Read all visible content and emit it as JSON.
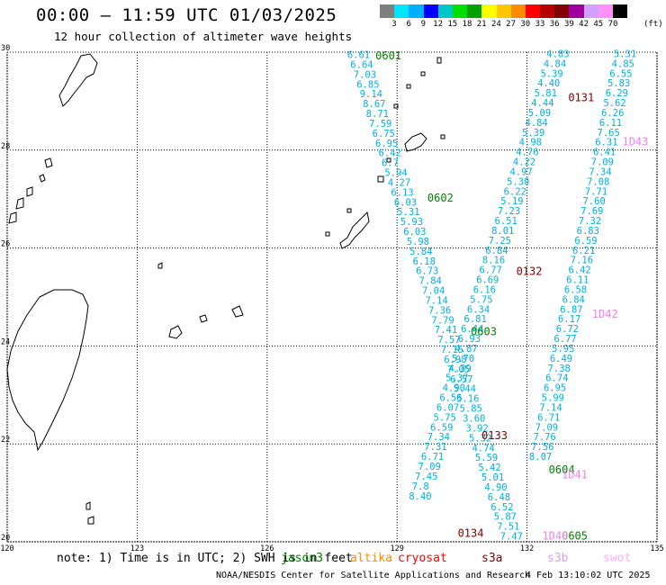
{
  "header": {
    "title": "00:00 – 11:59 UTC 01/03/2025",
    "subtitle": "12 hour collection of altimeter wave heights"
  },
  "colorbar": {
    "colors": [
      "#7f7f7f",
      "#00e5ff",
      "#00b0ff",
      "#0000ff",
      "#00c8c8",
      "#00e000",
      "#00a000",
      "#ffff00",
      "#ffc800",
      "#ff8c00",
      "#ff0000",
      "#b40000",
      "#800000",
      "#a000a0",
      "#d0a0ff",
      "#ff90ff",
      "#000000"
    ],
    "ticks": [
      "3",
      "6",
      "9",
      "12",
      "15",
      "18",
      "21",
      "24",
      "27",
      "30",
      "33",
      "36",
      "39",
      "42",
      "45",
      "70"
    ],
    "unit": "(ft)"
  },
  "axes": {
    "lon_labels": [
      "120",
      "123",
      "126",
      "129",
      "132",
      "135"
    ],
    "lat_labels": [
      "30",
      "28",
      "26",
      "24",
      "22",
      "20"
    ]
  },
  "map_data": {
    "lon_range": [
      120,
      135
    ],
    "lat_range": [
      20,
      30
    ],
    "pass_labels": [
      {
        "label": "0601",
        "color": "#008000",
        "lon": 128.5,
        "lat": 29.85
      },
      {
        "label": "0602",
        "color": "#008000",
        "lon": 129.7,
        "lat": 26.95
      },
      {
        "label": "0603",
        "color": "#008000",
        "lon": 130.7,
        "lat": 24.22
      },
      {
        "label": "0604",
        "color": "#008000",
        "lon": 132.5,
        "lat": 21.4
      },
      {
        "label": "0605",
        "color": "#008000",
        "lon": 132.8,
        "lat": 20.05
      },
      {
        "label": "0131",
        "color": "#800000",
        "lon": 132.95,
        "lat": 29.0
      },
      {
        "label": "0132",
        "color": "#800000",
        "lon": 131.75,
        "lat": 25.45
      },
      {
        "label": "0133",
        "color": "#800000",
        "lon": 130.95,
        "lat": 22.1
      },
      {
        "label": "0134",
        "color": "#800000",
        "lon": 130.4,
        "lat": 20.1
      },
      {
        "label": "1D43",
        "color": "#ee82ee",
        "lon": 134.2,
        "lat": 28.1
      },
      {
        "label": "1D42",
        "color": "#ee82ee",
        "lon": 133.5,
        "lat": 24.58
      },
      {
        "label": "1D41",
        "color": "#ee82ee",
        "lon": 132.8,
        "lat": 21.3
      },
      {
        "label": "1D40",
        "color": "#ee82ee",
        "lon": 132.35,
        "lat": 20.05
      }
    ],
    "tracks": [
      {
        "name": "0601",
        "color": "#00b0e0",
        "start": [
          127.85,
          29.88
        ],
        "step": [
          0.072,
          -0.2007
        ],
        "values": [
          "6.61",
          "6.64",
          "7.03",
          "6.85",
          "9.14",
          "8.67",
          "8.71",
          "7.59",
          "6.75",
          "6.95",
          "6.42",
          "6.7",
          "5.94",
          "4.27",
          "6.13",
          "6.03",
          "5.31",
          "5.93",
          "6.03",
          "5.98",
          "5.84",
          "6.18",
          "6.73",
          "7.84",
          "7.04",
          "7.14",
          "7.36",
          "7.79",
          "7.41",
          "7.57",
          "7.15",
          "6.98",
          "7.05",
          "6.57",
          "5.44",
          "5.16",
          "5.85",
          "3.60",
          "3.92",
          "5.32",
          "4.74",
          "5.59",
          "5.42",
          "5.01",
          "4.90",
          "6.48",
          "6.52",
          "5.87",
          "7.51",
          "7.47"
        ]
      },
      {
        "name": "0131",
        "color": "#00b0e0",
        "start": [
          132.45,
          29.9
        ],
        "step": [
          -0.0706,
          -0.2007
        ],
        "values": [
          "4.83",
          "4.84",
          "5.39",
          "4.40",
          "5.81",
          "4.44",
          "5.09",
          "4.84",
          "5.39",
          "4.98",
          "4.76",
          "4.22",
          "4.97",
          "5.30",
          "6.22",
          "5.19",
          "7.23",
          "6.51",
          "8.01",
          "7.25",
          "6.84",
          "8.16",
          "6.77",
          "6.69",
          "6.16",
          "5.75",
          "6.34",
          "6.81",
          "6.44",
          "6.93",
          "4.87",
          "5.70",
          "4.39",
          "5.37",
          "4.90",
          "6.56",
          "6.07",
          "5.75",
          "6.59",
          "7.34",
          "7.31",
          "6.71",
          "7.09",
          "7.45",
          "7.8",
          "8.40"
        ]
      },
      {
        "name": "0132",
        "color": "#00b0e0",
        "start": [
          134.0,
          29.9
        ],
        "step": [
          -0.0476,
          -0.2007
        ],
        "values": [
          "5.31",
          "4.85",
          "6.55",
          "5.83",
          "6.29",
          "5.62",
          "6.26",
          "6.11",
          "7.65",
          "6.31",
          "6.41",
          "7.09",
          "7.34",
          "7.08",
          "7.71",
          "7.60",
          "7.69",
          "7.32",
          "6.83",
          "6.59",
          "6.21",
          "7.16",
          "6.42",
          "6.11",
          "6.58",
          "6.84",
          "6.87",
          "6.17",
          "6.72",
          "6.77",
          "5.95",
          "6.49",
          "7.38",
          "6.74",
          "6.95",
          "5.99",
          "7.14",
          "6.71",
          "7.09",
          "7.76",
          "7.56",
          "8.07"
        ]
      }
    ]
  },
  "footer": {
    "note": "note: 1) Time is in UTC; 2) SWH is in feet",
    "legend": [
      {
        "label": "jason3",
        "color": "#008000"
      },
      {
        "label": "altika",
        "color": "#ff8c00"
      },
      {
        "label": "cryosat",
        "color": "#ff0000"
      },
      {
        "label": "s3a",
        "color": "#800000"
      },
      {
        "label": "s3b",
        "color": "#d0a0ff"
      },
      {
        "label": "swot",
        "color": "#ffb0ff"
      }
    ],
    "credit": "NOAA/NESDIS Center for Satellite Applications and Research",
    "timestamp": "4 Feb 13:10:02 UTC 2025"
  }
}
